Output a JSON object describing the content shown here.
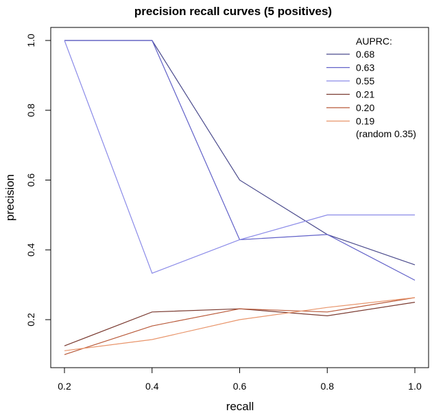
{
  "chart_data": {
    "type": "line",
    "title": "precision recall curves (5 positives)",
    "xlabel": "recall",
    "ylabel": "precision",
    "xlim": [
      0.2,
      1.0
    ],
    "ylim": [
      0.1,
      1.0
    ],
    "x_ticks": [
      0.2,
      0.4,
      0.6,
      0.8,
      1.0
    ],
    "x_tick_labels": [
      "0.2",
      "0.4",
      "0.6",
      "0.8",
      "1.0"
    ],
    "y_ticks": [
      0.2,
      0.4,
      0.6,
      0.8,
      1.0
    ],
    "y_tick_labels": [
      "0.2",
      "0.4",
      "0.6",
      "0.8",
      "1.0"
    ],
    "grid": false,
    "legend": {
      "title": "AUPRC:",
      "placement": "top-right",
      "footer": "(random 0.35)"
    },
    "x": [
      0.2,
      0.4,
      0.6,
      0.8,
      1.0
    ],
    "series": [
      {
        "name": "0.68",
        "color": "#4a4a8c",
        "values": [
          1.0,
          1.0,
          0.6,
          0.444,
          0.357
        ]
      },
      {
        "name": "0.63",
        "color": "#6060c8",
        "values": [
          1.0,
          1.0,
          0.429,
          0.444,
          0.313
        ]
      },
      {
        "name": "0.55",
        "color": "#8a8ae8",
        "values": [
          1.0,
          0.333,
          0.429,
          0.5,
          0.5
        ]
      },
      {
        "name": "0.21",
        "color": "#7a3a30",
        "values": [
          0.125,
          0.222,
          0.231,
          0.211,
          0.25
        ]
      },
      {
        "name": "0.20",
        "color": "#b85838",
        "values": [
          0.1,
          0.182,
          0.231,
          0.222,
          0.263
        ]
      },
      {
        "name": "0.19",
        "color": "#e8946a",
        "values": [
          0.111,
          0.143,
          0.2,
          0.235,
          0.263
        ]
      }
    ]
  }
}
